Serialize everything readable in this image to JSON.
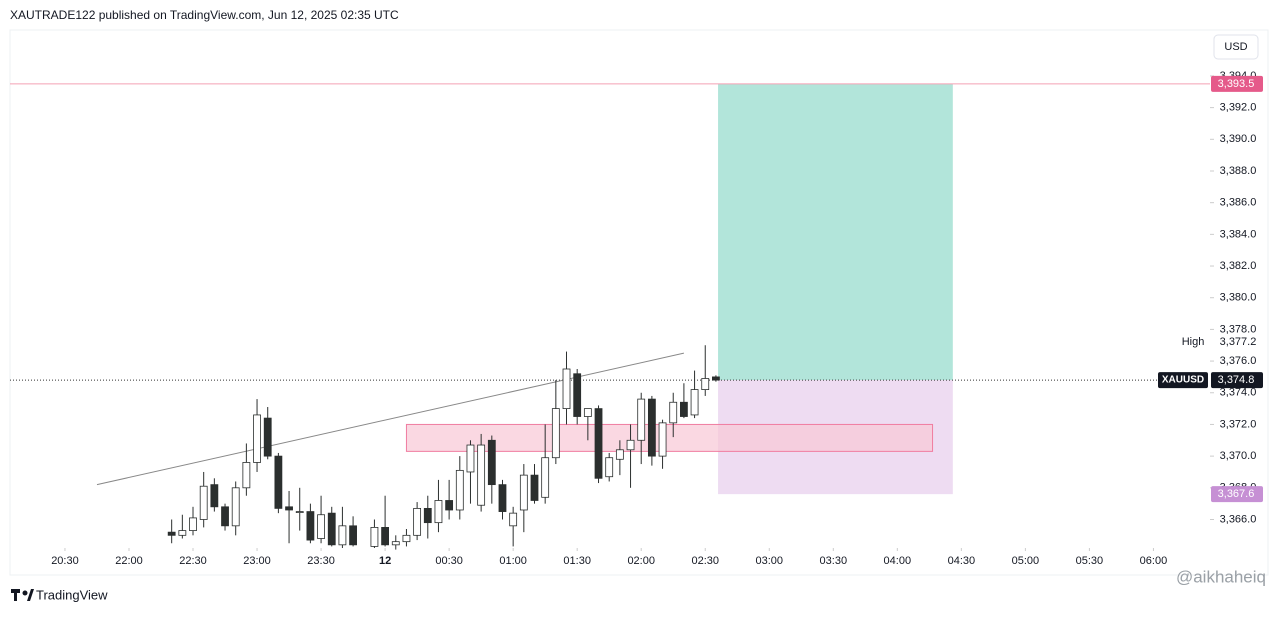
{
  "header": "XAUTRADE122 published on TradingView.com, Jun 12, 2025 02:35 UTC",
  "currency": "USD",
  "logo": "TradingView",
  "watermark": "@aikhaheiq",
  "chart_data": {
    "type": "candlestick",
    "symbol": "XAUUSD",
    "xlim": [
      -5.15,
      107.3
    ],
    "ylim": [
      3364.2,
      3396.9
    ],
    "xticks": [
      {
        "value": 0,
        "label": "20:30"
      },
      {
        "value": 6,
        "label": "22:00"
      },
      {
        "value": 12,
        "label": "22:30"
      },
      {
        "value": 18,
        "label": "23:00"
      },
      {
        "value": 24,
        "label": "23:30"
      },
      {
        "value": 30,
        "label": "12"
      },
      {
        "value": 36,
        "label": "00:30"
      },
      {
        "value": 42,
        "label": "01:00"
      },
      {
        "value": 48,
        "label": "01:30"
      },
      {
        "value": 54,
        "label": "02:00"
      },
      {
        "value": 60,
        "label": "02:30"
      },
      {
        "value": 66,
        "label": "03:00"
      },
      {
        "value": 72,
        "label": "03:30"
      },
      {
        "value": 78,
        "label": "04:00"
      },
      {
        "value": 84,
        "label": "04:30"
      },
      {
        "value": 90,
        "label": "05:00"
      },
      {
        "value": 96,
        "label": "05:30"
      },
      {
        "value": 102,
        "label": "06:00"
      }
    ],
    "yticks": [
      {
        "value": 3366,
        "label": "3,366.0"
      },
      {
        "value": 3368,
        "label": "3,368.0"
      },
      {
        "value": 3370,
        "label": "3,370.0"
      },
      {
        "value": 3372,
        "label": "3,372.0"
      },
      {
        "value": 3374,
        "label": "3,374.0"
      },
      {
        "value": 3376,
        "label": "3,376.0"
      },
      {
        "value": 3378,
        "label": "3,378.0"
      },
      {
        "value": 3380,
        "label": "3,380.0"
      },
      {
        "value": 3382,
        "label": "3,382.0"
      },
      {
        "value": 3384,
        "label": "3,384.0"
      },
      {
        "value": 3386,
        "label": "3,386.0"
      },
      {
        "value": 3388,
        "label": "3,388.0"
      },
      {
        "value": 3390,
        "label": "3,390.0"
      },
      {
        "value": 3392,
        "label": "3,392.0"
      },
      {
        "value": 3394,
        "label": "3,394.0"
      }
    ],
    "up_color": "#ffffff",
    "down_color": "#2b2f2e",
    "x": [
      10,
      11,
      12,
      13,
      14,
      15,
      16,
      17,
      18,
      19,
      20,
      21,
      22,
      23,
      24,
      25,
      26,
      27,
      29,
      30,
      31,
      32,
      33,
      34,
      35,
      36,
      37,
      38,
      39,
      40,
      41,
      42,
      43,
      44,
      45,
      46,
      47,
      48,
      49,
      50,
      51,
      52,
      53,
      54,
      55,
      56,
      57,
      58,
      59,
      60,
      61
    ],
    "open": [
      3365.2,
      3365.0,
      3365.3,
      3366.0,
      3368.2,
      3366.8,
      3365.6,
      3368.0,
      3369.6,
      3372.4,
      3370.0,
      3366.8,
      3366.5,
      3366.5,
      3364.8,
      3366.4,
      3364.4,
      3365.6,
      3364.3,
      3365.5,
      3364.4,
      3364.6,
      3365.0,
      3366.7,
      3365.8,
      3367.2,
      3366.6,
      3369.0,
      3366.9,
      3371.0,
      3368.2,
      3365.6,
      3366.6,
      3368.8,
      3367.4,
      3369.9,
      3373.0,
      3375.2,
      3372.5,
      3373.0,
      3368.7,
      3369.8,
      3370.4,
      3371.0,
      3373.6,
      3370.0,
      3372.1,
      3373.4,
      3372.6,
      3374.2,
      3375.0
    ],
    "high": [
      3366.0,
      3366.3,
      3366.8,
      3369.0,
      3368.6,
      3367.0,
      3368.4,
      3370.8,
      3373.6,
      3373.1,
      3370.2,
      3367.8,
      3368.0,
      3367.0,
      3367.5,
      3366.8,
      3366.8,
      3366.2,
      3366.0,
      3367.5,
      3365.0,
      3365.4,
      3367.1,
      3367.5,
      3368.5,
      3368.5,
      3370.0,
      3371.0,
      3371.4,
      3371.3,
      3368.5,
      3366.8,
      3369.5,
      3369.5,
      3372.0,
      3374.8,
      3376.6,
      3375.5,
      3373.0,
      3373.2,
      3370.2,
      3371.0,
      3372.0,
      3374.0,
      3373.8,
      3372.3,
      3374.0,
      3374.6,
      3375.4,
      3377.0,
      3375.1
    ],
    "low": [
      3364.5,
      3364.8,
      3365.0,
      3365.5,
      3366.5,
      3365.3,
      3365.0,
      3367.5,
      3369.0,
      3369.8,
      3366.4,
      3364.5,
      3365.3,
      3364.5,
      3364.5,
      3364.3,
      3364.2,
      3364.3,
      3364.2,
      3364.3,
      3364.1,
      3364.3,
      3364.7,
      3364.8,
      3365.2,
      3366.0,
      3366.0,
      3367.0,
      3366.5,
      3367.0,
      3366.0,
      3364.3,
      3365.2,
      3367.0,
      3367.0,
      3369.5,
      3372.0,
      3372.0,
      3371.0,
      3368.3,
      3368.4,
      3368.8,
      3368.0,
      3369.5,
      3369.4,
      3369.2,
      3371.2,
      3372.4,
      3372.4,
      3373.8,
      3374.7
    ],
    "close": [
      3365.0,
      3365.3,
      3366.1,
      3368.1,
      3366.8,
      3365.6,
      3368.0,
      3369.6,
      3372.6,
      3370.0,
      3366.7,
      3366.6,
      3366.5,
      3364.7,
      3366.3,
      3364.4,
      3365.6,
      3364.4,
      3365.5,
      3364.4,
      3364.6,
      3365.0,
      3366.7,
      3365.8,
      3367.2,
      3366.6,
      3369.1,
      3370.7,
      3370.7,
      3368.2,
      3366.5,
      3366.4,
      3368.8,
      3367.2,
      3369.9,
      3373.0,
      3375.5,
      3372.5,
      3373.0,
      3368.6,
      3369.9,
      3370.4,
      3371.0,
      3373.6,
      3370.0,
      3372.1,
      3373.4,
      3372.5,
      3374.2,
      3374.9,
      3374.8
    ],
    "trendline": {
      "x": [
        3,
        58
      ],
      "y": [
        3368.2,
        3376.5
      ],
      "color": "#888888"
    },
    "zone": {
      "x": [
        32,
        81.3
      ],
      "y": [
        3370.3,
        3372.0
      ],
      "color": "#f8c8d6"
    },
    "position": {
      "x": [
        61.2,
        83.2
      ],
      "target": 3393.5,
      "entry": 3374.8,
      "stop": 3367.6,
      "target_color": "#b2e5da",
      "stop_color": "#eedcf2",
      "target_label": "3,393.5",
      "entry_label": "3,374.8",
      "stop_label": "3,367.6"
    },
    "high_marker": {
      "name": "High",
      "value": 3377.2,
      "label": "3,377.2"
    }
  }
}
